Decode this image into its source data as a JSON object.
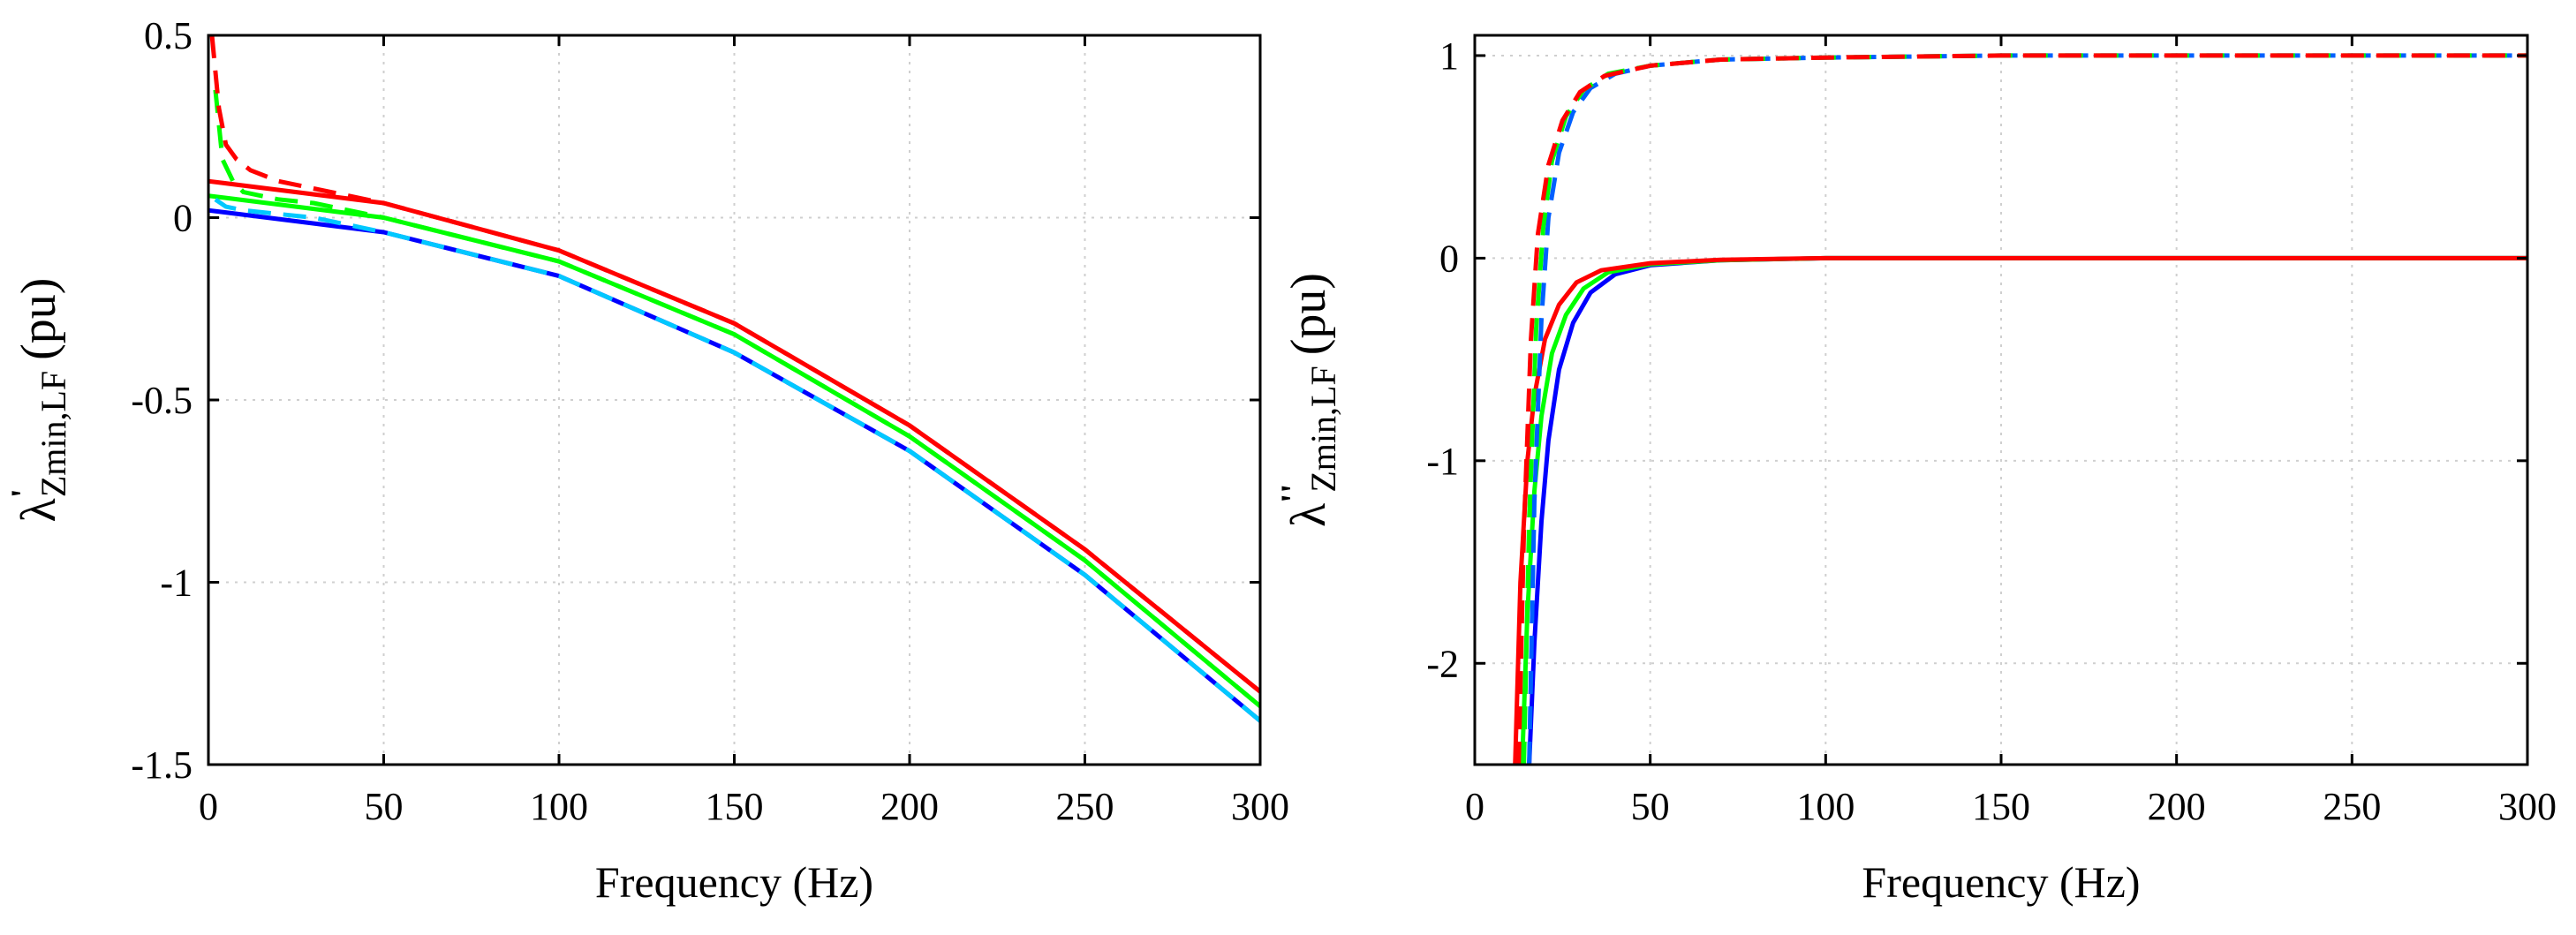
{
  "chart_data": [
    {
      "type": "line",
      "xlabel": "Frequency (Hz)",
      "ylabel": {
        "symbol": "λ",
        "prime": "'",
        "subscript": "Zmin,LF",
        "unit": "(pu)"
      },
      "xlim": [
        0,
        300
      ],
      "ylim": [
        -1.5,
        0.5
      ],
      "xticks": [
        0,
        50,
        100,
        150,
        200,
        250,
        300
      ],
      "xtick_labels": [
        "0",
        "50",
        "100",
        "150",
        "200",
        "250",
        "300"
      ],
      "yticks": [
        -1.5,
        -1,
        -0.5,
        0,
        0.5
      ],
      "ytick_labels": [
        "-1.5",
        "-1",
        "-0.5",
        "0",
        "0.5"
      ],
      "grid": true,
      "series": [
        {
          "name": "blue solid",
          "color": "#0000ff",
          "dash": "solid",
          "x": [
            0,
            50,
            100,
            150,
            200,
            250,
            300
          ],
          "y": [
            0.02,
            -0.04,
            -0.16,
            -0.37,
            -0.64,
            -0.98,
            -1.38
          ]
        },
        {
          "name": "green solid",
          "color": "#00ff00",
          "dash": "solid",
          "x": [
            0,
            50,
            100,
            150,
            200,
            250,
            300
          ],
          "y": [
            0.06,
            0.0,
            -0.12,
            -0.32,
            -0.6,
            -0.94,
            -1.34
          ]
        },
        {
          "name": "red solid",
          "color": "#ff0000",
          "dash": "solid",
          "x": [
            0,
            50,
            100,
            150,
            200,
            250,
            300
          ],
          "y": [
            0.1,
            0.04,
            -0.09,
            -0.29,
            -0.57,
            -0.91,
            -1.3
          ]
        },
        {
          "name": "cyan dashed",
          "color": "#00c8ff",
          "dash": "dashed",
          "x": [
            2,
            5,
            10,
            20,
            30,
            50,
            100,
            150,
            200,
            250,
            300
          ],
          "y": [
            0.05,
            0.03,
            0.02,
            0.01,
            0.0,
            -0.04,
            -0.16,
            -0.37,
            -0.64,
            -0.98,
            -1.38
          ]
        },
        {
          "name": "green dashed",
          "color": "#00ff00",
          "dash": "dashed",
          "x": [
            2,
            4,
            7,
            10,
            20,
            30,
            50,
            100,
            150,
            200,
            250,
            300
          ],
          "y": [
            0.35,
            0.16,
            0.1,
            0.07,
            0.05,
            0.04,
            0.0,
            -0.12,
            -0.32,
            -0.6,
            -0.94,
            -1.34
          ]
        },
        {
          "name": "red dashed",
          "color": "#ff0000",
          "dash": "dashed",
          "x": [
            1,
            3,
            5,
            8,
            12,
            20,
            30,
            50,
            100,
            150,
            200,
            250,
            300
          ],
          "y": [
            0.5,
            0.3,
            0.2,
            0.16,
            0.13,
            0.1,
            0.08,
            0.04,
            -0.09,
            -0.29,
            -0.57,
            -0.91,
            -1.3
          ]
        }
      ]
    },
    {
      "type": "line",
      "xlabel": "Frequency (Hz)",
      "ylabel": {
        "symbol": "λ",
        "prime": "''",
        "subscript": "Zmin,LF",
        "unit": "(pu)"
      },
      "xlim": [
        0,
        300
      ],
      "ylim": [
        -2.5,
        1.1
      ],
      "xticks": [
        0,
        50,
        100,
        150,
        200,
        250,
        300
      ],
      "xtick_labels": [
        "0",
        "50",
        "100",
        "150",
        "200",
        "250",
        "300"
      ],
      "yticks": [
        -2,
        -1,
        0,
        1
      ],
      "ytick_labels": [
        "-2",
        "-1",
        "0",
        "1"
      ],
      "grid": true,
      "series": [
        {
          "name": "blue solid",
          "color": "#0000ff",
          "dash": "solid",
          "x": [
            15.5,
            17,
            19,
            21,
            24,
            28,
            33,
            40,
            50,
            70,
            100,
            200,
            300
          ],
          "y": [
            -2.5,
            -1.9,
            -1.3,
            -0.9,
            -0.55,
            -0.32,
            -0.17,
            -0.08,
            -0.035,
            -0.01,
            0,
            0,
            0
          ]
        },
        {
          "name": "green solid",
          "color": "#00ff00",
          "dash": "solid",
          "x": [
            13.5,
            15,
            17,
            19,
            22,
            26,
            31,
            38,
            50,
            70,
            100,
            200,
            300
          ],
          "y": [
            -2.5,
            -1.75,
            -1.15,
            -0.78,
            -0.47,
            -0.28,
            -0.15,
            -0.07,
            -0.03,
            -0.01,
            0,
            0,
            0
          ]
        },
        {
          "name": "red solid",
          "color": "#ff0000",
          "dash": "solid",
          "x": [
            11.5,
            13,
            15,
            17,
            20,
            24,
            29,
            36,
            50,
            70,
            100,
            200,
            300
          ],
          "y": [
            -2.5,
            -1.6,
            -1.0,
            -0.68,
            -0.4,
            -0.23,
            -0.12,
            -0.06,
            -0.025,
            -0.008,
            0,
            0,
            0
          ]
        },
        {
          "name": "blue dashed",
          "color": "#0060ff",
          "dash": "dashed",
          "x": [
            15.5,
            17,
            19,
            21,
            24,
            28,
            33,
            40,
            50,
            70,
            100,
            150,
            200,
            300
          ],
          "y": [
            -2.5,
            -1.2,
            -0.3,
            0.2,
            0.52,
            0.72,
            0.84,
            0.91,
            0.95,
            0.98,
            0.99,
            1.0,
            1.0,
            1.0
          ]
        },
        {
          "name": "green dashed",
          "color": "#00ff00",
          "dash": "dashed",
          "x": [
            14,
            15.5,
            17.5,
            19.5,
            22,
            26,
            31,
            38,
            50,
            70,
            100,
            150,
            200,
            300
          ],
          "y": [
            -2.5,
            -1.3,
            -0.35,
            0.15,
            0.48,
            0.7,
            0.83,
            0.91,
            0.95,
            0.98,
            0.99,
            1.0,
            1.0,
            1.0
          ]
        },
        {
          "name": "red dashed",
          "color": "#ff0000",
          "dash": "dashed",
          "x": [
            12.5,
            14,
            16,
            18,
            21,
            25,
            30,
            37,
            50,
            70,
            100,
            150,
            200,
            300
          ],
          "y": [
            -2.5,
            -1.35,
            -0.4,
            0.12,
            0.46,
            0.68,
            0.82,
            0.9,
            0.95,
            0.98,
            0.99,
            1.0,
            1.0,
            1.0
          ]
        }
      ]
    }
  ]
}
